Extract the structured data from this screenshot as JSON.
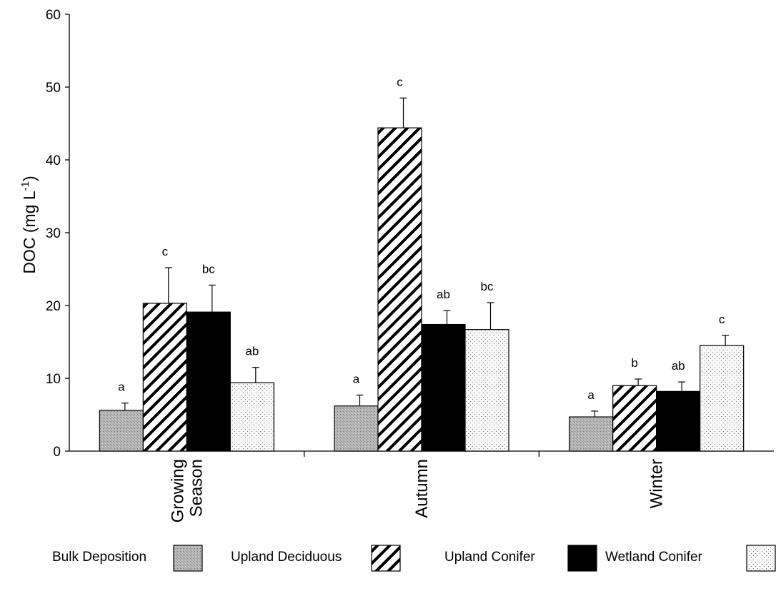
{
  "chart_data": {
    "type": "bar",
    "ylabel": "DOC (mg L",
    "ylabel_superscript": "-1",
    "ylabel_close": ")",
    "ylim": [
      0,
      60
    ],
    "yticks": [
      "0",
      "10",
      "20",
      "30",
      "40",
      "50",
      "60"
    ],
    "categories": [
      [
        "Growing",
        "Season"
      ],
      [
        "Autumn"
      ],
      [
        "Winter"
      ]
    ],
    "grid": false,
    "legend_position": "bottom",
    "series": [
      {
        "name": "Bulk Deposition",
        "pattern": "stipple-gray",
        "values": [
          5.6,
          6.2,
          4.7
        ],
        "errors": [
          1.0,
          1.5,
          0.8
        ],
        "labels": [
          "a",
          "a",
          "a"
        ]
      },
      {
        "name": "Upland Deciduous",
        "pattern": "diagonal-hatch",
        "values": [
          20.3,
          44.4,
          9.0
        ],
        "errors": [
          4.9,
          4.1,
          0.9
        ],
        "labels": [
          "c",
          "c",
          "b"
        ]
      },
      {
        "name": "Upland Conifer",
        "pattern": "solid-black",
        "values": [
          19.1,
          17.4,
          8.2
        ],
        "errors": [
          3.7,
          1.9,
          1.3
        ],
        "labels": [
          "bc",
          "ab",
          "ab"
        ]
      },
      {
        "name": "Wetland Conifer",
        "pattern": "light-dots",
        "values": [
          9.4,
          16.7,
          14.5
        ],
        "errors": [
          2.1,
          3.7,
          1.4
        ],
        "labels": [
          "ab",
          "bc",
          "c"
        ]
      }
    ],
    "colors": {
      "axis": "#000000",
      "stipple": "#a8a8a8",
      "solid": "#000000",
      "dots_bg": "#f4f4f4"
    }
  }
}
